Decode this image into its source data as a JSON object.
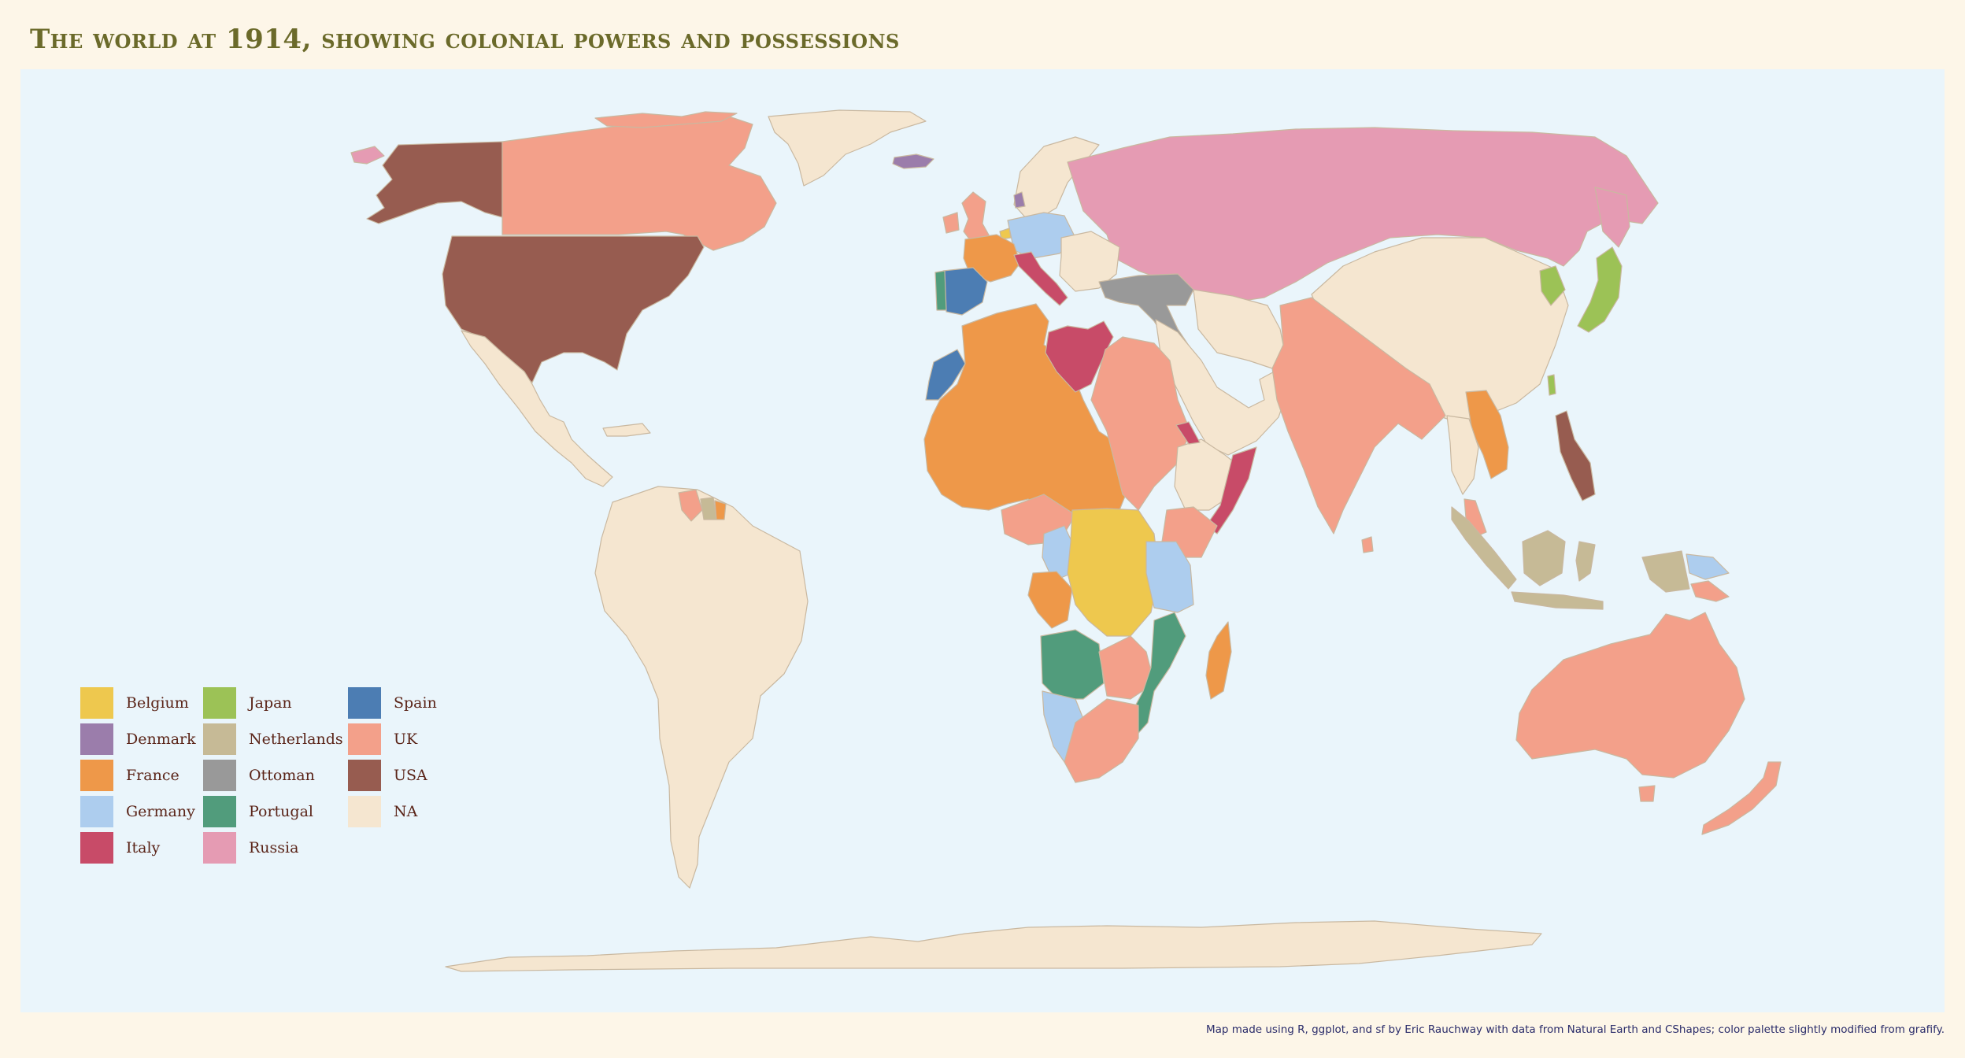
{
  "title": "The world at 1914, showing colonial powers and possessions",
  "legend": [
    {
      "label": "Belgium",
      "color": "#eec84e"
    },
    {
      "label": "Denmark",
      "color": "#9b7dab"
    },
    {
      "label": "France",
      "color": "#ee9849"
    },
    {
      "label": "Germany",
      "color": "#adcdee"
    },
    {
      "label": "Italy",
      "color": "#c84b68"
    },
    {
      "label": "Japan",
      "color": "#9cc256"
    },
    {
      "label": "Netherlands",
      "color": "#c6ba96"
    },
    {
      "label": "Ottoman",
      "color": "#999999"
    },
    {
      "label": "Portugal",
      "color": "#519c7c"
    },
    {
      "label": "Russia",
      "color": "#e59bb3"
    },
    {
      "label": "Spain",
      "color": "#4c7db3"
    },
    {
      "label": "UK",
      "color": "#f3a08a"
    },
    {
      "label": "USA",
      "color": "#975c50"
    },
    {
      "label": "NA",
      "color": "#f5e6d0"
    }
  ],
  "colors": {
    "ocean": "#eaf5fb",
    "page_background": "#fdf6e8",
    "title": "#6b6a2a",
    "legend_text": "#5a2418",
    "credit_text": "#2a2c6a"
  },
  "credit": "Map made using R, ggplot, and sf by Eric Rauchway with data from Natural Earth and CShapes; color palette slightly modified from grafify."
}
